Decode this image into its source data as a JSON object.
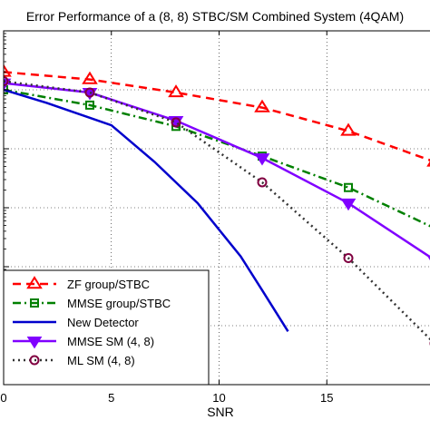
{
  "chart_data": {
    "type": "line",
    "title": "Error Performance of a (8, 8) STBC/SM Combined System (4QAM)",
    "xlabel": "SNR",
    "ylabel": "",
    "xlim": [
      0,
      20
    ],
    "ylog": true,
    "ylim_exp": [
      -6,
      0
    ],
    "x_ticks": [
      0,
      5,
      10,
      15
    ],
    "grid": true,
    "grid_style": "dotted",
    "legend_position": "bottom-left",
    "series": [
      {
        "name": "ZF group/STBC",
        "color": "#ff0000",
        "dash": "dashed",
        "marker": "triangle-up",
        "x": [
          0,
          4,
          8,
          12,
          16,
          20
        ],
        "y": [
          0.2,
          0.15,
          0.09,
          0.05,
          0.02,
          0.006
        ]
      },
      {
        "name": "MMSE group/STBC",
        "color": "#008000",
        "dash": "dashdot",
        "marker": "square",
        "x": [
          0,
          4,
          8,
          12,
          16,
          20
        ],
        "y": [
          0.1,
          0.055,
          0.024,
          0.0075,
          0.0022,
          0.00045
        ]
      },
      {
        "name": "New Detector",
        "color": "#0000cc",
        "dash": "solid",
        "marker": "none",
        "x": [
          0,
          2,
          5,
          7,
          9,
          11,
          12,
          13.2
        ],
        "y": [
          0.1,
          0.06,
          0.025,
          0.006,
          0.0012,
          0.00015,
          4e-05,
          8e-06
        ]
      },
      {
        "name": "MMSE SM (4, 8)",
        "color": "#8000ff",
        "dash": "solid",
        "marker": "triangle-down",
        "x": [
          0,
          4,
          8,
          12,
          16,
          20
        ],
        "y": [
          0.13,
          0.09,
          0.03,
          0.007,
          0.0012,
          0.00013
        ]
      },
      {
        "name": "ML SM (4, 8)",
        "color": "#333333",
        "dash": "dotted",
        "marker": "circle",
        "x": [
          0,
          4,
          8,
          12,
          16,
          20
        ],
        "y": [
          0.14,
          0.09,
          0.028,
          0.0027,
          0.00014,
          5e-06
        ]
      }
    ]
  }
}
